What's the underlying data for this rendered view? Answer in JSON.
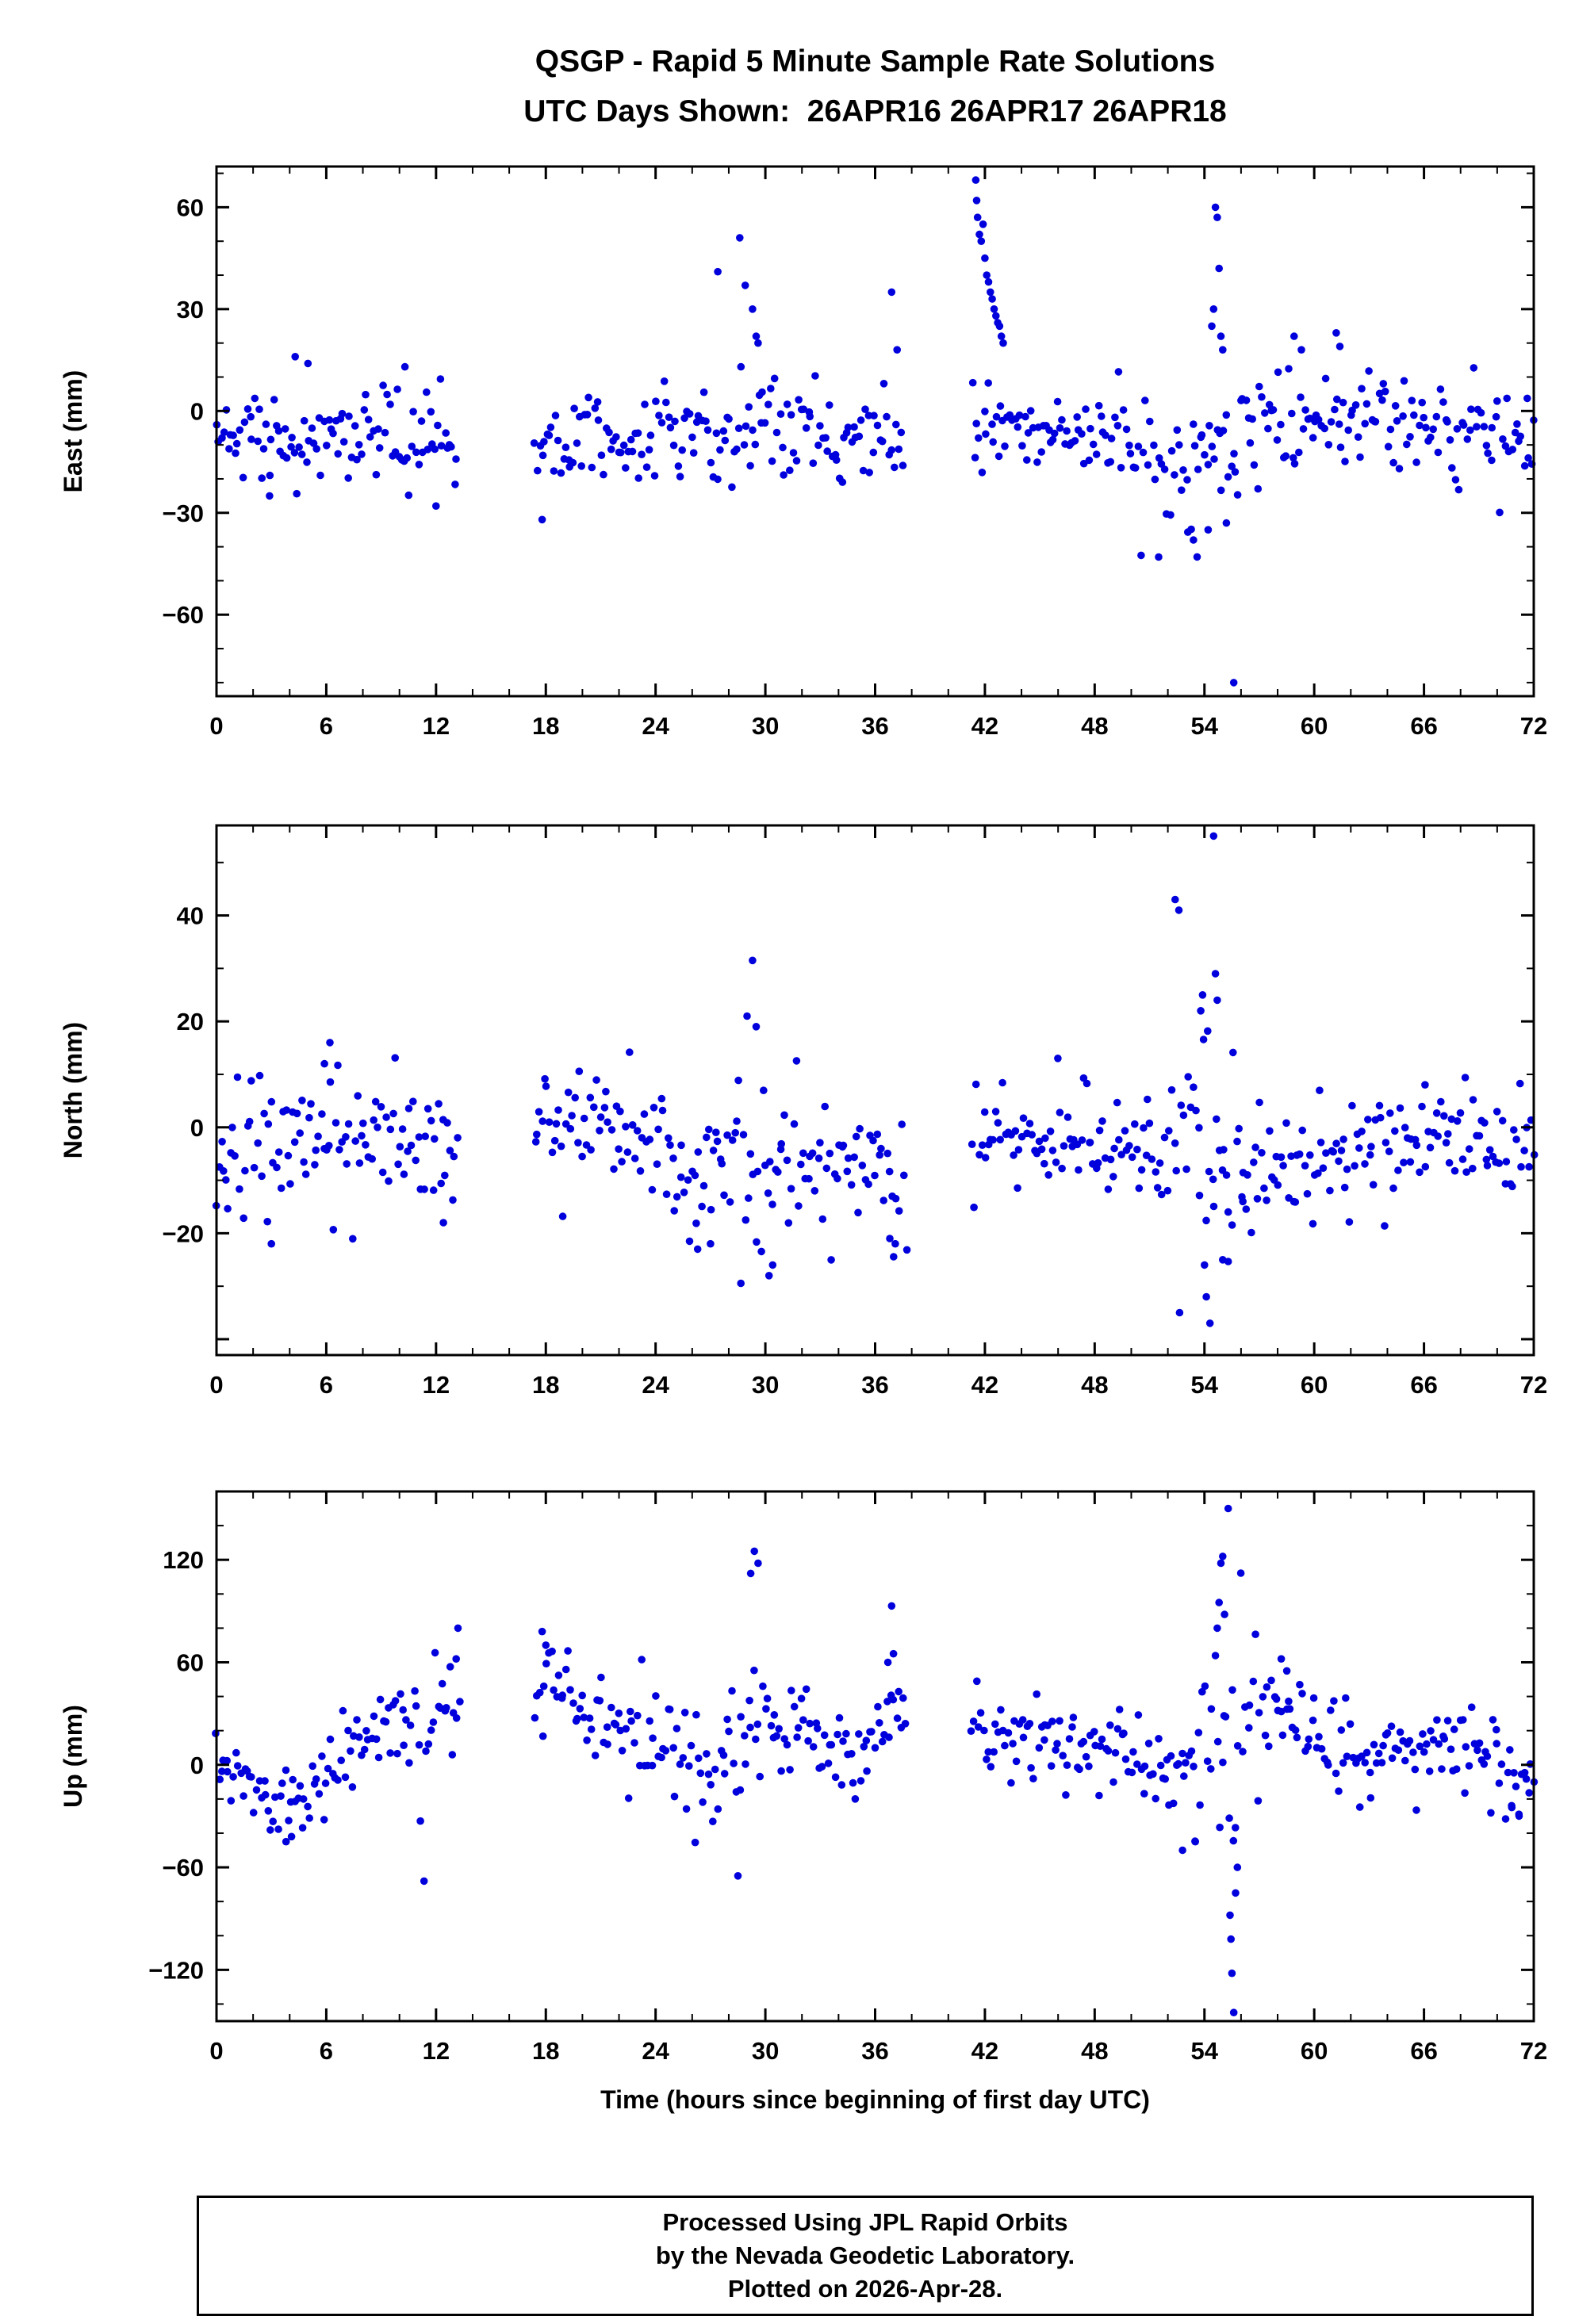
{
  "footer": {
    "line1": "Processed Using JPL Rapid Orbits",
    "line2": "by the Nevada Geodetic Laboratory.",
    "line3": "Plotted on 2026-Apr-28."
  },
  "chart_data": {
    "type": "scatter",
    "title": "QSGP - Rapid 5 Minute Sample Rate Solutions",
    "subtitle": "UTC Days Shown:  26APR16 26APR17 26APR18",
    "xlabel": "Time (hours since beginning of first day UTC)",
    "x_range": [
      0,
      72
    ],
    "xticks": [
      0,
      6,
      12,
      18,
      24,
      30,
      36,
      42,
      48,
      54,
      60,
      66,
      72
    ],
    "x_major": 6,
    "x_minor": 2,
    "point_color": "#0000dd",
    "point_radius": 4.8,
    "seed": 42,
    "dt": 0.13,
    "panels": [
      {
        "name": "east",
        "ylabel": "East (mm)",
        "ylim": [
          -84,
          72
        ],
        "y_major": 30,
        "y_minor": 10,
        "yticks": [
          60,
          30,
          0,
          -30,
          -60
        ],
        "segments": [
          [
            0,
            13.2
          ],
          [
            17.4,
            37.6
          ],
          [
            41.3,
            72
          ]
        ],
        "baseline": [
          [
            0,
            -8
          ],
          [
            6,
            -7
          ],
          [
            13,
            -11
          ],
          [
            17.4,
            -10
          ],
          [
            24,
            -6
          ],
          [
            30,
            -8
          ],
          [
            37.6,
            -7
          ],
          [
            41.3,
            -5
          ],
          [
            44,
            -5
          ],
          [
            48,
            -8
          ],
          [
            52,
            -16
          ],
          [
            54,
            -14
          ],
          [
            56,
            -8
          ],
          [
            58,
            -4
          ],
          [
            61,
            -2
          ],
          [
            66,
            -7
          ],
          [
            72,
            -8
          ]
        ],
        "sigma": [
          [
            0,
            6
          ],
          [
            13,
            6
          ],
          [
            17.4,
            6
          ],
          [
            24,
            6
          ],
          [
            28,
            9
          ],
          [
            31,
            8
          ],
          [
            37.6,
            7
          ],
          [
            41.3,
            5
          ],
          [
            48,
            6
          ],
          [
            52,
            9
          ],
          [
            55,
            12
          ],
          [
            57,
            7
          ],
          [
            60,
            7
          ],
          [
            72,
            6
          ]
        ],
        "outliers": [
          [
            28.6,
            51
          ],
          [
            28.9,
            37
          ],
          [
            29.3,
            30
          ],
          [
            29.5,
            22
          ],
          [
            29.6,
            20
          ],
          [
            27.4,
            41
          ],
          [
            36.9,
            35
          ],
          [
            37.2,
            18
          ],
          [
            41.5,
            68
          ],
          [
            41.55,
            62
          ],
          [
            41.6,
            57
          ],
          [
            41.7,
            52
          ],
          [
            41.8,
            50
          ],
          [
            41.9,
            55
          ],
          [
            42.0,
            45
          ],
          [
            42.1,
            40
          ],
          [
            42.2,
            38
          ],
          [
            42.3,
            35
          ],
          [
            42.4,
            33
          ],
          [
            42.5,
            30
          ],
          [
            42.6,
            28
          ],
          [
            42.7,
            26
          ],
          [
            42.8,
            25
          ],
          [
            42.9,
            22
          ],
          [
            43.0,
            20
          ],
          [
            54.6,
            60
          ],
          [
            54.7,
            57
          ],
          [
            54.8,
            42
          ],
          [
            54.5,
            30
          ],
          [
            54.4,
            25
          ],
          [
            54.9,
            22
          ],
          [
            55.0,
            18
          ],
          [
            55.6,
            -80
          ],
          [
            54.2,
            -35
          ],
          [
            53.6,
            -43
          ],
          [
            53.4,
            -38
          ],
          [
            55.2,
            -33
          ],
          [
            58.9,
            22
          ],
          [
            59.3,
            18
          ],
          [
            61.2,
            23
          ],
          [
            61.4,
            19
          ],
          [
            12.0,
            -28
          ],
          [
            2.9,
            -25
          ],
          [
            17.8,
            -32
          ],
          [
            10.3,
            13
          ],
          [
            4.3,
            16
          ],
          [
            5.0,
            14
          ]
        ]
      },
      {
        "name": "north",
        "ylabel": "North (mm)",
        "ylim": [
          -43,
          57
        ],
        "y_major": 20,
        "y_minor": 10,
        "yticks": [
          40,
          20,
          0,
          -20
        ],
        "segments": [
          [
            0,
            13.2
          ],
          [
            17.4,
            37.8
          ],
          [
            41.3,
            72
          ]
        ],
        "baseline": [
          [
            0,
            -4
          ],
          [
            4,
            -3
          ],
          [
            8,
            0
          ],
          [
            13,
            -4
          ],
          [
            17.4,
            1
          ],
          [
            20,
            -1
          ],
          [
            24,
            -3
          ],
          [
            26,
            -9
          ],
          [
            28,
            -9
          ],
          [
            30,
            -6
          ],
          [
            33,
            -6
          ],
          [
            37.8,
            -7
          ],
          [
            41.3,
            -3
          ],
          [
            46,
            -2
          ],
          [
            50,
            -5
          ],
          [
            52,
            -4
          ],
          [
            54,
            0
          ],
          [
            56,
            -7
          ],
          [
            58,
            -8
          ],
          [
            62,
            -4
          ],
          [
            66,
            -3
          ],
          [
            69,
            -2
          ],
          [
            72,
            -1
          ]
        ],
        "sigma": [
          [
            0,
            6
          ],
          [
            13,
            6
          ],
          [
            17.4,
            5
          ],
          [
            24,
            5
          ],
          [
            27,
            7
          ],
          [
            31,
            7
          ],
          [
            37.8,
            7
          ],
          [
            41.3,
            5
          ],
          [
            50,
            5
          ],
          [
            53,
            9
          ],
          [
            55,
            12
          ],
          [
            57,
            6
          ],
          [
            62,
            5
          ],
          [
            72,
            5
          ]
        ],
        "outliers": [
          [
            29.3,
            31.5
          ],
          [
            29.0,
            21
          ],
          [
            29.5,
            19
          ],
          [
            30.2,
            -28
          ],
          [
            30.4,
            -26
          ],
          [
            26.3,
            -23
          ],
          [
            27.0,
            -22
          ],
          [
            36.8,
            -21
          ],
          [
            37.1,
            -22
          ],
          [
            52.4,
            43
          ],
          [
            52.6,
            41
          ],
          [
            54.5,
            55
          ],
          [
            54.3,
            -37
          ],
          [
            54.1,
            -32
          ],
          [
            54.0,
            -26
          ],
          [
            53.8,
            22
          ],
          [
            53.9,
            25
          ],
          [
            54.6,
            29
          ],
          [
            54.7,
            24
          ],
          [
            55.0,
            -25
          ],
          [
            55.3,
            -16
          ],
          [
            56.1,
            -14
          ],
          [
            6.2,
            16
          ],
          [
            5.9,
            12
          ],
          [
            12.4,
            -18
          ],
          [
            3.0,
            -22
          ]
        ]
      },
      {
        "name": "up",
        "ylabel": "Up (mm)",
        "ylim": [
          -150,
          160
        ],
        "y_major": 60,
        "y_minor": 20,
        "yticks": [
          120,
          60,
          0,
          -60,
          -120
        ],
        "segments": [
          [
            0,
            13.3
          ],
          [
            17.4,
            37.8
          ],
          [
            41.3,
            72
          ]
        ],
        "baseline": [
          [
            0,
            -3
          ],
          [
            2,
            -12
          ],
          [
            3.5,
            -25
          ],
          [
            5,
            -15
          ],
          [
            7,
            15
          ],
          [
            9,
            25
          ],
          [
            11,
            22
          ],
          [
            13,
            30
          ],
          [
            17.4,
            45
          ],
          [
            18.5,
            45
          ],
          [
            20,
            25
          ],
          [
            22,
            20
          ],
          [
            24,
            12
          ],
          [
            26,
            0
          ],
          [
            27.5,
            -10
          ],
          [
            29,
            25
          ],
          [
            31,
            20
          ],
          [
            33,
            15
          ],
          [
            35,
            5
          ],
          [
            37,
            25
          ],
          [
            41.3,
            20
          ],
          [
            44,
            15
          ],
          [
            46,
            12
          ],
          [
            48,
            8
          ],
          [
            50,
            0
          ],
          [
            52,
            -5
          ],
          [
            54,
            10
          ],
          [
            55.5,
            0
          ],
          [
            57,
            30
          ],
          [
            58.5,
            35
          ],
          [
            60,
            15
          ],
          [
            62,
            8
          ],
          [
            64,
            6
          ],
          [
            66,
            8
          ],
          [
            68,
            8
          ],
          [
            70,
            5
          ],
          [
            72,
            -8
          ]
        ],
        "sigma": [
          [
            0,
            10
          ],
          [
            3.5,
            10
          ],
          [
            7,
            12
          ],
          [
            13,
            15
          ],
          [
            17.4,
            15
          ],
          [
            24,
            12
          ],
          [
            27.5,
            15
          ],
          [
            29,
            30
          ],
          [
            31,
            18
          ],
          [
            35,
            15
          ],
          [
            37,
            20
          ],
          [
            41.3,
            12
          ],
          [
            48,
            12
          ],
          [
            52,
            15
          ],
          [
            54,
            30
          ],
          [
            56,
            35
          ],
          [
            58,
            12
          ],
          [
            62,
            10
          ],
          [
            72,
            12
          ]
        ],
        "outliers": [
          [
            29.4,
            125
          ],
          [
            29.6,
            118
          ],
          [
            29.2,
            112
          ],
          [
            28.5,
            -65
          ],
          [
            13.2,
            80
          ],
          [
            13.1,
            62
          ],
          [
            17.8,
            78
          ],
          [
            18.0,
            70
          ],
          [
            36.9,
            93
          ],
          [
            37.0,
            65
          ],
          [
            36.7,
            60
          ],
          [
            55.3,
            150
          ],
          [
            55.0,
            122
          ],
          [
            54.9,
            118
          ],
          [
            54.8,
            95
          ],
          [
            55.1,
            88
          ],
          [
            54.7,
            80
          ],
          [
            55.6,
            -145
          ],
          [
            55.5,
            -122
          ],
          [
            55.45,
            -102
          ],
          [
            55.4,
            -88
          ],
          [
            55.7,
            -75
          ],
          [
            55.8,
            -60
          ],
          [
            53.5,
            -45
          ],
          [
            52.8,
            -50
          ],
          [
            58.2,
            62
          ],
          [
            58.5,
            55
          ],
          [
            71.2,
            -30
          ],
          [
            70.8,
            -25
          ],
          [
            3.8,
            -45
          ],
          [
            4.1,
            -42
          ]
        ]
      }
    ]
  }
}
